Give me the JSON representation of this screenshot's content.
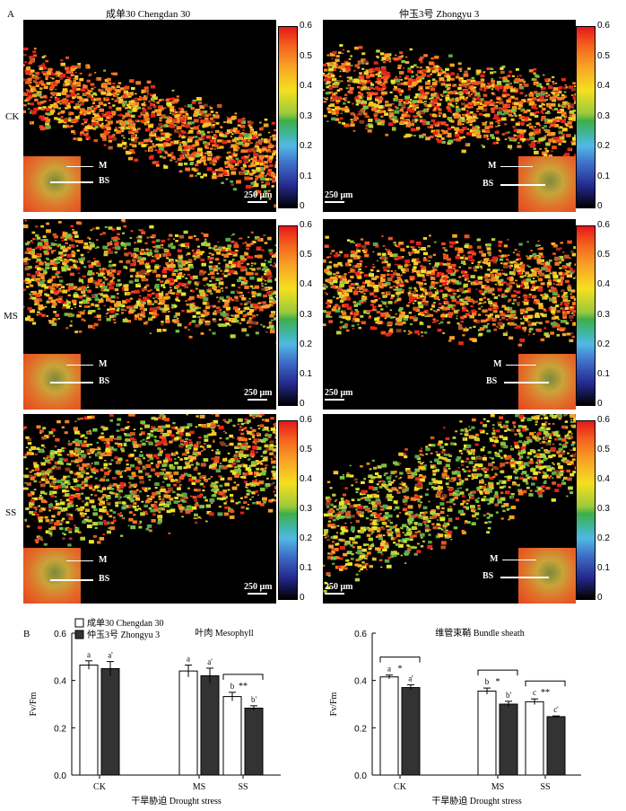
{
  "figure": {
    "panel_a_label": "A",
    "panel_b_label": "B",
    "col_titles": [
      "成单30 Chengdan 30",
      "仲玉3号 Zhongyu 3"
    ],
    "row_labels": [
      "CK",
      "MS",
      "SS"
    ],
    "colorbar_ticks": [
      "0.6",
      "0.5",
      "0.4",
      "0.3",
      "0.2",
      "0.1",
      "0"
    ],
    "scale_bar": "250 μm",
    "inset_labels": [
      "M",
      "BS"
    ]
  },
  "chart_data": [
    {
      "type": "bar",
      "title": "叶肉 Mesophyll",
      "xlabel": "干旱胁迫 Drought stress",
      "ylabel": "Fv/Fm",
      "ylim": [
        0,
        0.6
      ],
      "yticks": [
        "0.0",
        "0.2",
        "0.4",
        "0.6"
      ],
      "categories": [
        "CK",
        "MS",
        "SS"
      ],
      "series": [
        {
          "name": "成单30 Chengdan 30",
          "values": [
            0.465,
            0.44,
            0.332
          ],
          "errors": [
            0.018,
            0.025,
            0.018
          ],
          "letters": [
            "a",
            "a",
            "b"
          ]
        },
        {
          "name": "仲玉3号 Zhongyu 3",
          "values": [
            0.45,
            0.42,
            0.283
          ],
          "errors": [
            0.03,
            0.032,
            0.01
          ],
          "letters": [
            "a'",
            "a'",
            "b'"
          ]
        }
      ],
      "significance": [
        "",
        "",
        "**"
      ],
      "colors": [
        "#ffffff",
        "#333333"
      ],
      "legend": "top-left"
    },
    {
      "type": "bar",
      "title": "维管束鞘 Bundle sheath",
      "xlabel": "干旱胁迫 Drought stress",
      "ylabel": "Fv/Fm",
      "ylim": [
        0,
        0.6
      ],
      "yticks": [
        "0.0",
        "0.2",
        "0.4",
        "0.6"
      ],
      "categories": [
        "CK",
        "MS",
        "SS"
      ],
      "series": [
        {
          "name": "成单30 Chengdan 30",
          "values": [
            0.415,
            0.355,
            0.31
          ],
          "errors": [
            0.008,
            0.013,
            0.012
          ],
          "letters": [
            "a",
            "b",
            "c"
          ]
        },
        {
          "name": "仲玉3号 Zhongyu 3",
          "values": [
            0.37,
            0.3,
            0.247
          ],
          "errors": [
            0.012,
            0.012,
            0.003
          ],
          "letters": [
            "a'",
            "b'",
            "c'"
          ]
        }
      ],
      "significance": [
        "*",
        "*",
        "**"
      ],
      "colors": [
        "#ffffff",
        "#333333"
      ]
    }
  ]
}
